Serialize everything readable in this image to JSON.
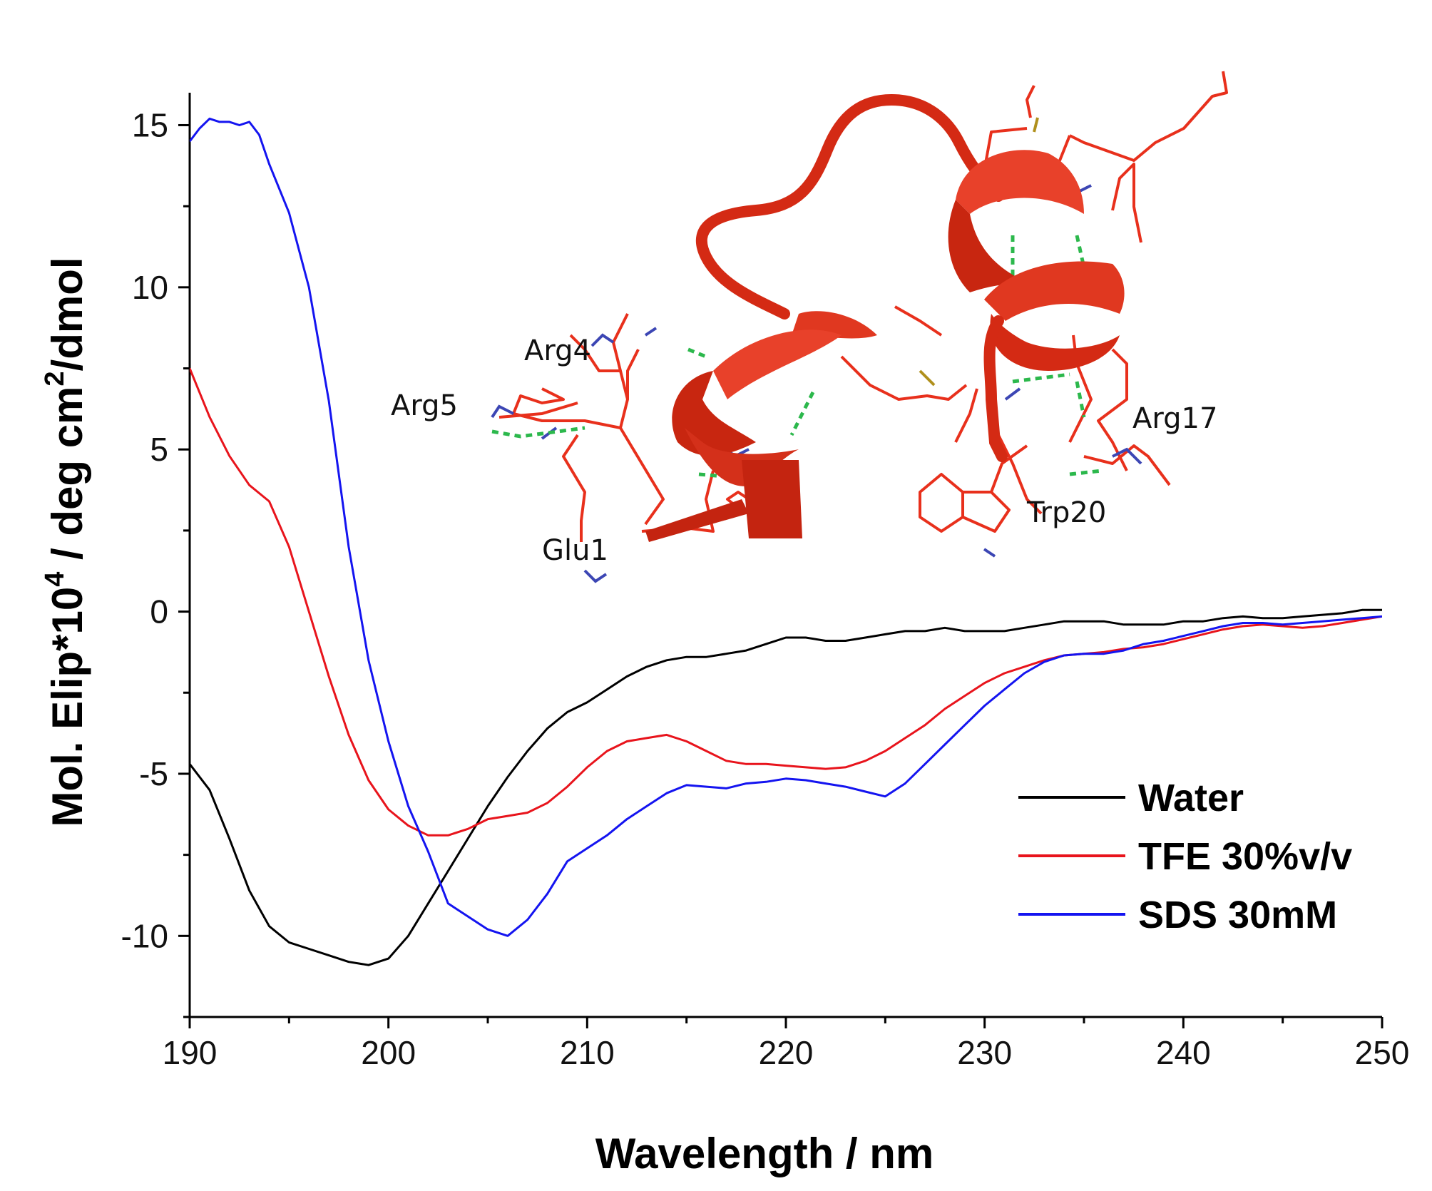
{
  "chart_data": {
    "type": "line",
    "title": "",
    "xlabel": "Wavelength / nm",
    "ylabel": {
      "prefix": "Mol. Elip*10",
      "exp1": "4",
      "middle": " / deg cm",
      "exp2": "2",
      "suffix": "/dmol"
    },
    "xlim": [
      190,
      250
    ],
    "ylim": [
      -12.5,
      16
    ],
    "xticks": [
      190,
      200,
      210,
      220,
      230,
      240,
      250
    ],
    "yticks": [
      15,
      10,
      5,
      0,
      -5,
      -10
    ],
    "xtick_labels": [
      "190",
      "200",
      "210",
      "220",
      "230",
      "240",
      "250"
    ],
    "ytick_labels": [
      "15",
      "10",
      "5",
      "0",
      "-5",
      "-10"
    ],
    "legend_position": "bottom-right",
    "series": [
      {
        "name": "Water",
        "color": "#000000",
        "points": [
          [
            190,
            -4.7
          ],
          [
            191,
            -5.5
          ],
          [
            192,
            -7.0
          ],
          [
            193,
            -8.6
          ],
          [
            194,
            -9.7
          ],
          [
            195,
            -10.2
          ],
          [
            196,
            -10.4
          ],
          [
            197,
            -10.6
          ],
          [
            198,
            -10.8
          ],
          [
            199,
            -10.9
          ],
          [
            200,
            -10.7
          ],
          [
            201,
            -10.0
          ],
          [
            202,
            -9.0
          ],
          [
            203,
            -8.0
          ],
          [
            204,
            -7.0
          ],
          [
            205,
            -6.0
          ],
          [
            206,
            -5.1
          ],
          [
            207,
            -4.3
          ],
          [
            208,
            -3.6
          ],
          [
            209,
            -3.1
          ],
          [
            210,
            -2.8
          ],
          [
            211,
            -2.4
          ],
          [
            212,
            -2.0
          ],
          [
            213,
            -1.7
          ],
          [
            214,
            -1.5
          ],
          [
            215,
            -1.4
          ],
          [
            216,
            -1.4
          ],
          [
            217,
            -1.3
          ],
          [
            218,
            -1.2
          ],
          [
            219,
            -1.0
          ],
          [
            220,
            -0.8
          ],
          [
            221,
            -0.8
          ],
          [
            222,
            -0.9
          ],
          [
            223,
            -0.9
          ],
          [
            224,
            -0.8
          ],
          [
            225,
            -0.7
          ],
          [
            226,
            -0.6
          ],
          [
            227,
            -0.6
          ],
          [
            228,
            -0.5
          ],
          [
            229,
            -0.6
          ],
          [
            230,
            -0.6
          ],
          [
            231,
            -0.6
          ],
          [
            232,
            -0.5
          ],
          [
            233,
            -0.4
          ],
          [
            234,
            -0.3
          ],
          [
            235,
            -0.3
          ],
          [
            236,
            -0.3
          ],
          [
            237,
            -0.4
          ],
          [
            238,
            -0.4
          ],
          [
            239,
            -0.4
          ],
          [
            240,
            -0.3
          ],
          [
            241,
            -0.3
          ],
          [
            242,
            -0.2
          ],
          [
            243,
            -0.15
          ],
          [
            244,
            -0.2
          ],
          [
            245,
            -0.2
          ],
          [
            246,
            -0.15
          ],
          [
            247,
            -0.1
          ],
          [
            248,
            -0.05
          ],
          [
            249,
            0.05
          ],
          [
            250,
            0.05
          ]
        ]
      },
      {
        "name": "TFE 30%v/v",
        "color": "#e8141c",
        "points": [
          [
            190,
            7.5
          ],
          [
            191,
            6.0
          ],
          [
            192,
            4.8
          ],
          [
            193,
            3.9
          ],
          [
            194,
            3.4
          ],
          [
            195,
            2.0
          ],
          [
            196,
            0.0
          ],
          [
            197,
            -2.0
          ],
          [
            198,
            -3.8
          ],
          [
            199,
            -5.2
          ],
          [
            200,
            -6.1
          ],
          [
            201,
            -6.6
          ],
          [
            202,
            -6.9
          ],
          [
            203,
            -6.9
          ],
          [
            204,
            -6.7
          ],
          [
            205,
            -6.4
          ],
          [
            206,
            -6.3
          ],
          [
            207,
            -6.2
          ],
          [
            208,
            -5.9
          ],
          [
            209,
            -5.4
          ],
          [
            210,
            -4.8
          ],
          [
            211,
            -4.3
          ],
          [
            212,
            -4.0
          ],
          [
            213,
            -3.9
          ],
          [
            214,
            -3.8
          ],
          [
            215,
            -4.0
          ],
          [
            216,
            -4.3
          ],
          [
            217,
            -4.6
          ],
          [
            218,
            -4.7
          ],
          [
            219,
            -4.7
          ],
          [
            220,
            -4.75
          ],
          [
            221,
            -4.8
          ],
          [
            222,
            -4.85
          ],
          [
            223,
            -4.8
          ],
          [
            224,
            -4.6
          ],
          [
            225,
            -4.3
          ],
          [
            226,
            -3.9
          ],
          [
            227,
            -3.5
          ],
          [
            228,
            -3.0
          ],
          [
            229,
            -2.6
          ],
          [
            230,
            -2.2
          ],
          [
            231,
            -1.9
          ],
          [
            232,
            -1.7
          ],
          [
            233,
            -1.5
          ],
          [
            234,
            -1.35
          ],
          [
            235,
            -1.3
          ],
          [
            236,
            -1.25
          ],
          [
            237,
            -1.15
          ],
          [
            238,
            -1.1
          ],
          [
            239,
            -1.0
          ],
          [
            240,
            -0.85
          ],
          [
            241,
            -0.7
          ],
          [
            242,
            -0.55
          ],
          [
            243,
            -0.45
          ],
          [
            244,
            -0.4
          ],
          [
            245,
            -0.45
          ],
          [
            246,
            -0.5
          ],
          [
            247,
            -0.45
          ],
          [
            248,
            -0.35
          ],
          [
            249,
            -0.25
          ],
          [
            250,
            -0.15
          ]
        ]
      },
      {
        "name": "SDS 30mM",
        "color": "#1414f0",
        "points": [
          [
            190,
            14.5
          ],
          [
            190.5,
            14.9
          ],
          [
            191,
            15.2
          ],
          [
            191.5,
            15.1
          ],
          [
            192,
            15.1
          ],
          [
            192.5,
            15.0
          ],
          [
            193,
            15.1
          ],
          [
            193.5,
            14.7
          ],
          [
            194,
            13.8
          ],
          [
            195,
            12.3
          ],
          [
            196,
            10.0
          ],
          [
            197,
            6.5
          ],
          [
            198,
            2.0
          ],
          [
            199,
            -1.5
          ],
          [
            200,
            -4.0
          ],
          [
            201,
            -6.0
          ],
          [
            202,
            -7.4
          ],
          [
            203,
            -9.0
          ],
          [
            204,
            -9.4
          ],
          [
            205,
            -9.8
          ],
          [
            206,
            -10.0
          ],
          [
            207,
            -9.5
          ],
          [
            208,
            -8.7
          ],
          [
            209,
            -7.7
          ],
          [
            210,
            -7.3
          ],
          [
            211,
            -6.9
          ],
          [
            212,
            -6.4
          ],
          [
            213,
            -6.0
          ],
          [
            214,
            -5.6
          ],
          [
            215,
            -5.35
          ],
          [
            216,
            -5.4
          ],
          [
            217,
            -5.45
          ],
          [
            218,
            -5.3
          ],
          [
            219,
            -5.25
          ],
          [
            220,
            -5.15
          ],
          [
            221,
            -5.2
          ],
          [
            222,
            -5.3
          ],
          [
            223,
            -5.4
          ],
          [
            224,
            -5.55
          ],
          [
            225,
            -5.7
          ],
          [
            226,
            -5.3
          ],
          [
            227,
            -4.7
          ],
          [
            228,
            -4.1
          ],
          [
            229,
            -3.5
          ],
          [
            230,
            -2.9
          ],
          [
            231,
            -2.4
          ],
          [
            232,
            -1.9
          ],
          [
            233,
            -1.55
          ],
          [
            234,
            -1.35
          ],
          [
            235,
            -1.3
          ],
          [
            236,
            -1.3
          ],
          [
            237,
            -1.2
          ],
          [
            238,
            -1.0
          ],
          [
            239,
            -0.9
          ],
          [
            240,
            -0.75
          ],
          [
            241,
            -0.6
          ],
          [
            242,
            -0.45
          ],
          [
            243,
            -0.35
          ],
          [
            244,
            -0.35
          ],
          [
            245,
            -0.4
          ],
          [
            246,
            -0.35
          ],
          [
            247,
            -0.3
          ],
          [
            248,
            -0.25
          ],
          [
            249,
            -0.2
          ],
          [
            250,
            -0.15
          ]
        ]
      }
    ],
    "inset_labels": [
      "Arg4",
      "Arg5",
      "Glu1",
      "Arg17",
      "Trp20"
    ]
  }
}
